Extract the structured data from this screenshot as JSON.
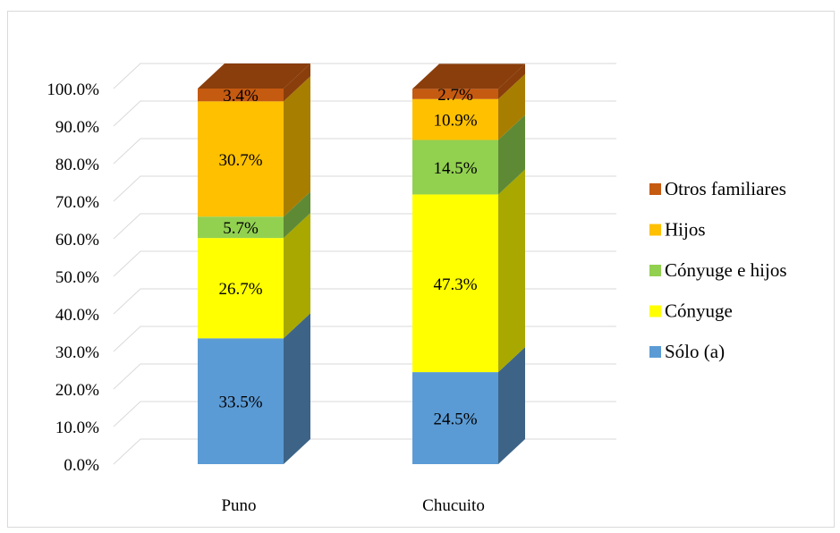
{
  "chart_data": {
    "type": "bar",
    "stacked": true,
    "three_d": true,
    "categories": [
      "Puno",
      "Chucuito"
    ],
    "series": [
      {
        "name": "Sólo (a)",
        "values": [
          33.5,
          24.5
        ],
        "labels": [
          "33.5%",
          "24.5%"
        ],
        "color": "#5b9bd5",
        "side_color": "#3d6487"
      },
      {
        "name": "Cónyuge",
        "values": [
          26.7,
          47.3
        ],
        "labels": [
          "26.7%",
          "47.3%"
        ],
        "color": "#ffff00",
        "side_color": "#a8a800"
      },
      {
        "name": "Cónyuge e hijos",
        "values": [
          5.7,
          14.5
        ],
        "labels": [
          "5.7%",
          "14.5%"
        ],
        "color": "#92d050",
        "side_color": "#5e8a36"
      },
      {
        "name": "Hijos",
        "values": [
          30.7,
          10.9
        ],
        "labels": [
          "30.7%",
          "10.9%"
        ],
        "color": "#ffc000",
        "side_color": "#a87e00"
      },
      {
        "name": "Otros familiares",
        "values": [
          3.4,
          2.7
        ],
        "labels": [
          "3.4%",
          "2.7%"
        ],
        "color": "#c55a11",
        "side_color": "#8a3e0b"
      }
    ],
    "y_ticks": [
      "0.0%",
      "10.0%",
      "20.0%",
      "30.0%",
      "40.0%",
      "50.0%",
      "60.0%",
      "70.0%",
      "80.0%",
      "90.0%",
      "100.0%"
    ],
    "ylim": [
      0,
      100
    ],
    "grid": true,
    "legend_position": "right",
    "title": "",
    "xlabel": "",
    "ylabel": ""
  }
}
